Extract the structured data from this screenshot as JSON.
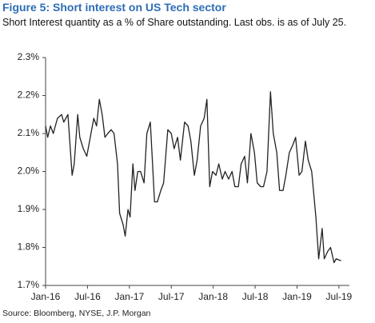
{
  "chart_data": {
    "type": "line",
    "title": "Figure 5: Short interest on US Tech sector",
    "subtitle": "Short Interest quantity as a % of Share outstanding. Last obs. is as of July 25.",
    "source": "Source: Bloomberg, NYSE, J.P. Morgan",
    "x": [
      0,
      0.3,
      0.7,
      1.1,
      1.7,
      2.3,
      2.6,
      3.2,
      3.8,
      4.1,
      4.6,
      4.9,
      5.4,
      5.9,
      6.5,
      6.9,
      7.3,
      7.7,
      8.1,
      8.5,
      8.9,
      9.4,
      9.8,
      10.3,
      10.6,
      11.1,
      11.4,
      11.8,
      12.1,
      12.5,
      12.8,
      13.2,
      13.6,
      14.1,
      14.5,
      15.0,
      15.6,
      16.0,
      16.5,
      16.9,
      17.5,
      18.0,
      18.4,
      18.9,
      19.3,
      19.9,
      20.4,
      20.8,
      21.3,
      21.7,
      22.2,
      22.7,
      23.1,
      23.5,
      23.9,
      24.4,
      24.8,
      25.3,
      25.7,
      26.2,
      26.7,
      27.1,
      27.6,
      28.0,
      28.5,
      28.9,
      29.4,
      29.9,
      30.3,
      30.8,
      31.2,
      31.7,
      32.2,
      32.6,
      33.1,
      33.5,
      34.0,
      34.4,
      34.9,
      35.4,
      35.8,
      36.3,
      36.7,
      37.2,
      37.6,
      38.1,
      38.7,
      39.1,
      39.6,
      39.9,
      40.4,
      40.8,
      41.3,
      41.6,
      42.3
    ],
    "series": [
      {
        "color": "#222222",
        "values": [
          2.12,
          2.09,
          2.12,
          2.1,
          2.14,
          2.15,
          2.13,
          2.15,
          1.99,
          2.02,
          2.15,
          2.09,
          2.06,
          2.04,
          2.1,
          2.14,
          2.12,
          2.19,
          2.15,
          2.09,
          2.1,
          2.11,
          2.1,
          2.02,
          1.89,
          1.86,
          1.83,
          1.9,
          1.88,
          2.02,
          1.95,
          2.0,
          2.0,
          1.97,
          2.1,
          2.13,
          1.92,
          1.92,
          1.95,
          1.97,
          2.11,
          2.1,
          2.06,
          2.09,
          2.03,
          2.13,
          2.12,
          2.08,
          1.99,
          2.03,
          2.12,
          2.14,
          2.19,
          1.96,
          2.0,
          1.99,
          2.02,
          1.98,
          2.0,
          1.98,
          2.0,
          1.96,
          1.96,
          2.02,
          2.04,
          1.97,
          2.1,
          2.05,
          1.97,
          1.96,
          1.96,
          2.0,
          2.21,
          2.1,
          2.05,
          1.95,
          1.95,
          1.99,
          2.05,
          2.07,
          2.09,
          1.99,
          2.0,
          2.08,
          2.03,
          2.0,
          1.88,
          1.77,
          1.85,
          1.77,
          1.79,
          1.8,
          1.76,
          1.77,
          1.765
        ]
      }
    ],
    "xlim": [
      0,
      43.5
    ],
    "xticks": [
      {
        "value": 0,
        "label": "Jan-16"
      },
      {
        "value": 6,
        "label": "Jul-16"
      },
      {
        "value": 12,
        "label": "Jan-17"
      },
      {
        "value": 18,
        "label": "Jul-17"
      },
      {
        "value": 24,
        "label": "Jan-18"
      },
      {
        "value": 30,
        "label": "Jul-18"
      },
      {
        "value": 36,
        "label": "Jan-19"
      },
      {
        "value": 42,
        "label": "Jul-19"
      }
    ],
    "ylim": [
      1.7,
      2.3
    ],
    "yticks": [
      {
        "value": 1.7,
        "label": "1.7%"
      },
      {
        "value": 1.8,
        "label": "1.8%"
      },
      {
        "value": 1.9,
        "label": "1.9%"
      },
      {
        "value": 2.0,
        "label": "2.0%"
      },
      {
        "value": 2.1,
        "label": "2.1%"
      },
      {
        "value": 2.2,
        "label": "2.2%"
      },
      {
        "value": 2.3,
        "label": "2.3%"
      }
    ],
    "grid": false
  }
}
